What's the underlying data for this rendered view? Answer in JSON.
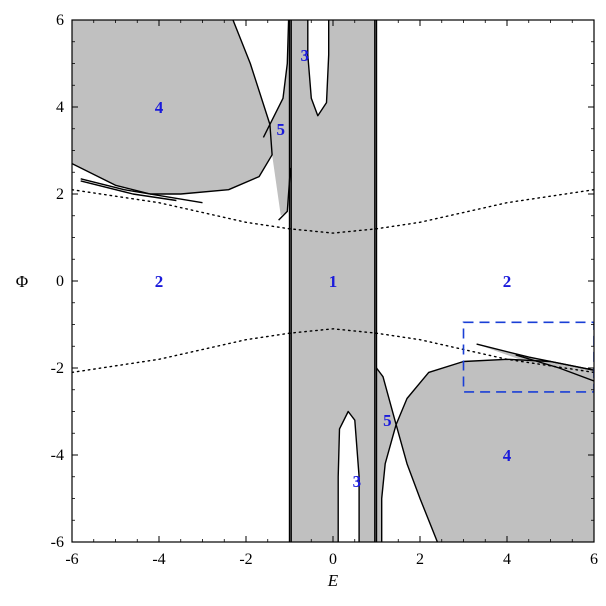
{
  "chart_data": {
    "type": "line",
    "title": "",
    "xlabel": "E",
    "ylabel": "Φ",
    "xlim": [
      -6,
      6
    ],
    "ylim": [
      -6,
      6
    ],
    "x_ticks": [
      -6,
      -4,
      -2,
      0,
      2,
      4,
      6
    ],
    "y_ticks": [
      -6,
      -4,
      -2,
      0,
      2,
      4,
      6
    ],
    "tick_labels_x": [
      "-6",
      "-4",
      "-2",
      "0",
      "2",
      "4",
      "6"
    ],
    "tick_labels_y": [
      "-6",
      "-4",
      "-2",
      "0",
      "2",
      "4",
      "6"
    ],
    "grid": false,
    "colors": {
      "shade": "#c0c0c0",
      "curve": "#000000",
      "label": "#1a1adb",
      "box": "#1a3fd6"
    },
    "region_labels": [
      {
        "text": "1",
        "x": 0.0,
        "y": 0.0
      },
      {
        "text": "2",
        "x": -4.0,
        "y": 0.0
      },
      {
        "text": "2",
        "x": 4.0,
        "y": 0.0
      },
      {
        "text": "3",
        "x": -0.65,
        "y": 5.2
      },
      {
        "text": "3",
        "x": 0.55,
        "y": -4.6
      },
      {
        "text": "4",
        "x": -4.0,
        "y": 4.0
      },
      {
        "text": "4",
        "x": 4.0,
        "y": -4.0
      },
      {
        "text": "5",
        "x": -1.2,
        "y": 3.5
      },
      {
        "text": "5",
        "x": 1.25,
        "y": -3.2
      }
    ],
    "shaded_regions": [
      {
        "name": "region-4-upper-left",
        "points": [
          [
            -6,
            6
          ],
          [
            -2.3,
            6
          ],
          [
            -1.9,
            5
          ],
          [
            -1.45,
            3.6
          ],
          [
            -1.4,
            2.9
          ],
          [
            -1.7,
            2.4
          ],
          [
            -2.4,
            2.1
          ],
          [
            -3.5,
            2.0
          ],
          [
            -4.2,
            2.0
          ],
          [
            -5.0,
            2.2
          ],
          [
            -6,
            2.7
          ]
        ]
      },
      {
        "name": "region-5-upper",
        "points": [
          [
            -1.45,
            3.6
          ],
          [
            -1.15,
            4.2
          ],
          [
            -1.05,
            5.0
          ],
          [
            -1.02,
            6
          ],
          [
            -0.98,
            6
          ],
          [
            -0.98,
            2.6
          ],
          [
            -1.05,
            1.6
          ],
          [
            -1.2,
            1.5
          ],
          [
            -1.4,
            2.9
          ]
        ]
      },
      {
        "name": "region-central-band",
        "points": [
          [
            -1.0,
            -6
          ],
          [
            -1.0,
            6
          ],
          [
            -0.58,
            6
          ],
          [
            -0.58,
            5.2
          ],
          [
            -0.5,
            4.2
          ],
          [
            -0.35,
            3.8
          ],
          [
            -0.15,
            4.1
          ],
          [
            -0.1,
            5.2
          ],
          [
            -0.1,
            6
          ],
          [
            1.0,
            6
          ],
          [
            1.0,
            -6
          ],
          [
            0.6,
            -6
          ],
          [
            0.6,
            -4.5
          ],
          [
            0.5,
            -3.2
          ],
          [
            0.35,
            -3.0
          ],
          [
            0.15,
            -3.4
          ],
          [
            0.12,
            -4.5
          ],
          [
            0.12,
            -6
          ]
        ]
      },
      {
        "name": "region-5-lower",
        "points": [
          [
            1.0,
            -2.0
          ],
          [
            1.15,
            -2.2
          ],
          [
            1.45,
            -3.3
          ],
          [
            1.2,
            -4.2
          ],
          [
            1.12,
            -5.0
          ],
          [
            1.12,
            -6
          ],
          [
            1.0,
            -6
          ]
        ]
      },
      {
        "name": "region-4-lower-right",
        "points": [
          [
            1.45,
            -3.3
          ],
          [
            1.7,
            -2.7
          ],
          [
            2.2,
            -2.1
          ],
          [
            3.0,
            -1.85
          ],
          [
            4.0,
            -1.8
          ],
          [
            5.0,
            -1.85
          ],
          [
            6,
            -2.05
          ],
          [
            6,
            -6
          ],
          [
            2.4,
            -6
          ],
          [
            2.0,
            -5.0
          ],
          [
            1.7,
            -4.2
          ]
        ]
      },
      {
        "name": "region-wedge-right",
        "points": [
          [
            3.3,
            -1.45
          ],
          [
            4.5,
            -1.75
          ],
          [
            6,
            -2.05
          ],
          [
            6,
            -2.3
          ],
          [
            4.7,
            -1.95
          ]
        ]
      }
    ],
    "curves": [
      {
        "name": "boundary-upper-left-cusp",
        "points": [
          [
            -6,
            2.7
          ],
          [
            -5.0,
            2.2
          ],
          [
            -4.2,
            2.0
          ],
          [
            -3.5,
            2.0
          ],
          [
            -2.4,
            2.1
          ],
          [
            -1.7,
            2.4
          ],
          [
            -1.4,
            2.9
          ],
          [
            -1.45,
            3.6
          ],
          [
            -1.9,
            5.0
          ],
          [
            -2.3,
            6
          ]
        ]
      },
      {
        "name": "boundary-upper-left-tail",
        "points": [
          [
            -5.8,
            2.35
          ],
          [
            -4.8,
            2.1
          ],
          [
            -3.0,
            1.8
          ]
        ]
      },
      {
        "name": "boundary-upper-left-tail-2",
        "points": [
          [
            -5.8,
            2.3
          ],
          [
            -4.6,
            2.0
          ],
          [
            -3.6,
            1.85
          ]
        ]
      },
      {
        "name": "boundary-5-upper",
        "points": [
          [
            -1.02,
            6
          ],
          [
            -1.05,
            5.0
          ],
          [
            -1.15,
            4.2
          ],
          [
            -1.45,
            3.6
          ],
          [
            -1.6,
            3.3
          ]
        ]
      },
      {
        "name": "boundary-5-upper-inner",
        "points": [
          [
            -0.98,
            2.6
          ],
          [
            -1.05,
            1.6
          ],
          [
            -1.25,
            1.4
          ]
        ]
      },
      {
        "name": "boundary-vertical-left",
        "points": [
          [
            -1.0,
            -6
          ],
          [
            -1.0,
            6
          ]
        ]
      },
      {
        "name": "boundary-vertical-left-2",
        "points": [
          [
            -0.96,
            -6
          ],
          [
            -0.96,
            6
          ]
        ]
      },
      {
        "name": "boundary-3-upper",
        "points": [
          [
            -0.58,
            6
          ],
          [
            -0.58,
            5.2
          ],
          [
            -0.5,
            4.2
          ],
          [
            -0.35,
            3.8
          ],
          [
            -0.15,
            4.1
          ],
          [
            -0.1,
            5.2
          ],
          [
            -0.1,
            6
          ]
        ]
      },
      {
        "name": "boundary-vertical-right",
        "points": [
          [
            1.0,
            -6
          ],
          [
            1.0,
            6
          ]
        ]
      },
      {
        "name": "boundary-vertical-right-2",
        "points": [
          [
            0.96,
            -6
          ],
          [
            0.96,
            6
          ]
        ]
      },
      {
        "name": "boundary-3-lower",
        "points": [
          [
            0.12,
            -6
          ],
          [
            0.12,
            -4.5
          ],
          [
            0.15,
            -3.4
          ],
          [
            0.35,
            -3.0
          ],
          [
            0.5,
            -3.2
          ],
          [
            0.6,
            -4.5
          ],
          [
            0.6,
            -6
          ]
        ]
      },
      {
        "name": "boundary-5-lower",
        "points": [
          [
            1.12,
            -6
          ],
          [
            1.12,
            -5.0
          ],
          [
            1.2,
            -4.2
          ],
          [
            1.45,
            -3.3
          ],
          [
            1.15,
            -2.2
          ],
          [
            1.0,
            -2.0
          ]
        ]
      },
      {
        "name": "boundary-lower-right-cusp",
        "points": [
          [
            2.4,
            -6
          ],
          [
            2.0,
            -5.0
          ],
          [
            1.7,
            -4.2
          ],
          [
            1.45,
            -3.3
          ],
          [
            1.7,
            -2.7
          ],
          [
            2.2,
            -2.1
          ],
          [
            3.0,
            -1.85
          ],
          [
            4.0,
            -1.8
          ],
          [
            5.0,
            -1.85
          ],
          [
            6,
            -2.05
          ]
        ]
      },
      {
        "name": "boundary-wedge-right-a",
        "points": [
          [
            3.3,
            -1.45
          ],
          [
            4.5,
            -1.75
          ],
          [
            6,
            -2.05
          ]
        ]
      },
      {
        "name": "boundary-wedge-right-b",
        "points": [
          [
            4.2,
            -1.7
          ],
          [
            5.2,
            -2.0
          ],
          [
            6,
            -2.3
          ]
        ]
      }
    ],
    "dotted_curves": [
      {
        "name": "dotted-upper",
        "points": [
          [
            -6,
            2.1
          ],
          [
            -4,
            1.8
          ],
          [
            -2,
            1.35
          ],
          [
            -1,
            1.2
          ],
          [
            0,
            1.1
          ],
          [
            1,
            1.2
          ],
          [
            2,
            1.35
          ],
          [
            4,
            1.8
          ],
          [
            6,
            2.1
          ]
        ]
      },
      {
        "name": "dotted-lower",
        "points": [
          [
            -6,
            -2.1
          ],
          [
            -4,
            -1.8
          ],
          [
            -2,
            -1.35
          ],
          [
            -1,
            -1.2
          ],
          [
            0,
            -1.1
          ],
          [
            1,
            -1.2
          ],
          [
            2,
            -1.35
          ],
          [
            4,
            -1.8
          ],
          [
            6,
            -2.1
          ]
        ]
      }
    ],
    "dashed_box": {
      "x0": 3.0,
      "x1": 6.0,
      "y0": -2.55,
      "y1": -0.95
    }
  }
}
